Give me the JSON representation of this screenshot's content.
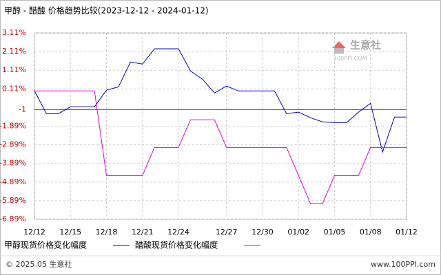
{
  "chart_data": {
    "type": "line",
    "title": "甲醇 - 醋酸 价格趋势比较(2023-12-12 - 2024-01-12)",
    "categories": [
      "12/12",
      null,
      null,
      "12/15",
      null,
      null,
      "12/18",
      null,
      null,
      "12/21",
      null,
      null,
      "12/24",
      null,
      null,
      null,
      "12/27",
      null,
      null,
      "12/30",
      null,
      null,
      "01/02",
      null,
      null,
      "01/05",
      null,
      null,
      "01/08",
      null,
      null,
      "01/12"
    ],
    "series": [
      {
        "name": "甲醇现货价格变化幅度",
        "color": "#0000cc",
        "values": [
          0.0,
          -1.22,
          -1.22,
          -0.85,
          -0.85,
          -0.85,
          0.04,
          0.22,
          1.55,
          1.44,
          2.26,
          2.26,
          2.26,
          1.07,
          0.63,
          -0.11,
          0.26,
          0.0,
          0.0,
          0.0,
          0.0,
          -1.22,
          -1.14,
          -1.44,
          -1.66,
          -1.7,
          -1.7,
          -1.14,
          -0.66,
          -3.28,
          -1.4,
          -1.4
        ]
      },
      {
        "name": "醋酸现货价格变化幅度",
        "color": "#e000e0",
        "values": [
          0.0,
          0.0,
          0.0,
          0.0,
          0.0,
          0.0,
          -4.54,
          -4.54,
          -4.54,
          -4.54,
          -3.03,
          -3.03,
          -3.03,
          -1.55,
          -1.55,
          -1.55,
          -3.03,
          -3.03,
          -3.03,
          -3.03,
          -3.03,
          -3.03,
          -4.54,
          -6.05,
          -6.05,
          -4.54,
          -4.54,
          -4.54,
          -3.03,
          -3.03,
          -3.03,
          -3.03
        ]
      }
    ],
    "ylim": [
      -6.89,
      3.11
    ],
    "yticks": [
      {
        "value": 3.11,
        "label": "3.11%"
      },
      {
        "value": 2.11,
        "label": "2.11%"
      },
      {
        "value": 1.11,
        "label": "1.11%"
      },
      {
        "value": 0.11,
        "label": "0.11%"
      },
      -1,
      {
        "value": -1.89,
        "label": "-1.89%"
      },
      {
        "value": -2.89,
        "label": "-2.89%"
      },
      {
        "value": -3.89,
        "label": "-3.89%"
      },
      {
        "value": -4.89,
        "label": "-4.89%"
      },
      {
        "value": -5.89,
        "label": "-5.89%"
      },
      {
        "value": -6.89,
        "label": "-6.89%"
      }
    ],
    "grid": true
  },
  "watermark": {
    "name": "生意社",
    "site": "100PPI.COM"
  },
  "footer": {
    "copyright": "© 2025.05 生意社",
    "site": "www.100PPI.com"
  }
}
